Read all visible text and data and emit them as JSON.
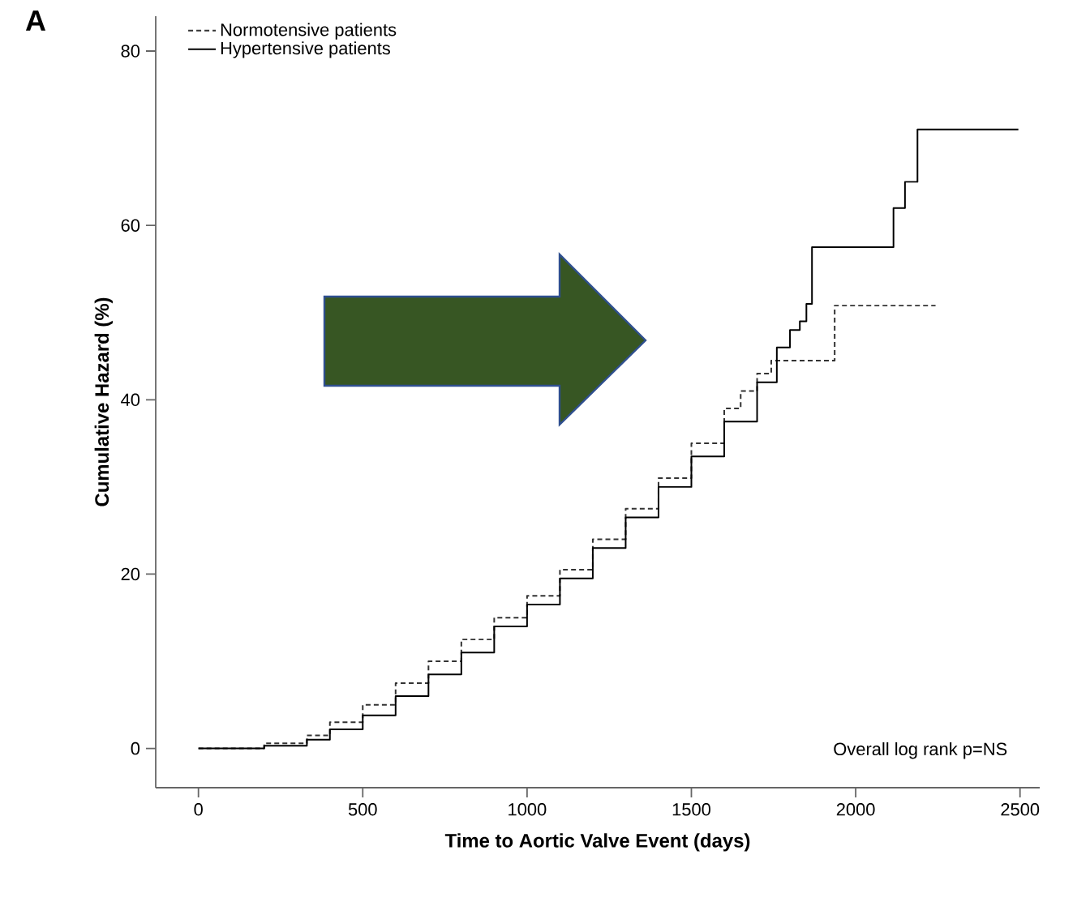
{
  "chart_data": {
    "type": "step",
    "title": "A",
    "xlabel": "Time to Aortic Valve Event (days)",
    "ylabel": "Cumulative Hazard (%)",
    "xlim": [
      -130,
      2560
    ],
    "ylim": [
      -4.5,
      84
    ],
    "xticks": [
      0,
      500,
      1000,
      1500,
      2000,
      2500
    ],
    "yticks": [
      0,
      20,
      40,
      60,
      80
    ],
    "grid": false,
    "legend": "top left",
    "marker": "none",
    "annotations": [
      "Overall log rank p=NS"
    ],
    "series": [
      {
        "name": "Normotensive patients",
        "color": "#333333",
        "line_style": "dashed",
        "x": [
          0,
          200,
          330,
          400,
          500,
          600,
          700,
          800,
          900,
          1000,
          1100,
          1200,
          1300,
          1400,
          1500,
          1600,
          1650,
          1700,
          1743,
          1936,
          2243
        ],
        "values": [
          0,
          0.6,
          1.5,
          3,
          5,
          7.5,
          10,
          12.5,
          15,
          17.5,
          20.5,
          24,
          27.5,
          31,
          35,
          39,
          41,
          43,
          44.5,
          50.8,
          50.8
        ]
      },
      {
        "name": "Hypertensive patients",
        "color": "#000000",
        "line_style": "solid",
        "x": [
          0,
          200,
          330,
          400,
          500,
          600,
          700,
          800,
          900,
          1000,
          1100,
          1200,
          1300,
          1400,
          1500,
          1600,
          1700,
          1760,
          1800,
          1830,
          1850,
          1867,
          2115,
          2150,
          2188,
          2495
        ],
        "values": [
          0,
          0.3,
          1,
          2.2,
          3.8,
          6,
          8.5,
          11,
          14,
          16.5,
          19.5,
          23,
          26.5,
          30,
          33.5,
          37.5,
          42,
          46,
          48,
          49,
          51,
          57.5,
          62,
          65,
          71,
          71
        ]
      }
    ]
  }
}
